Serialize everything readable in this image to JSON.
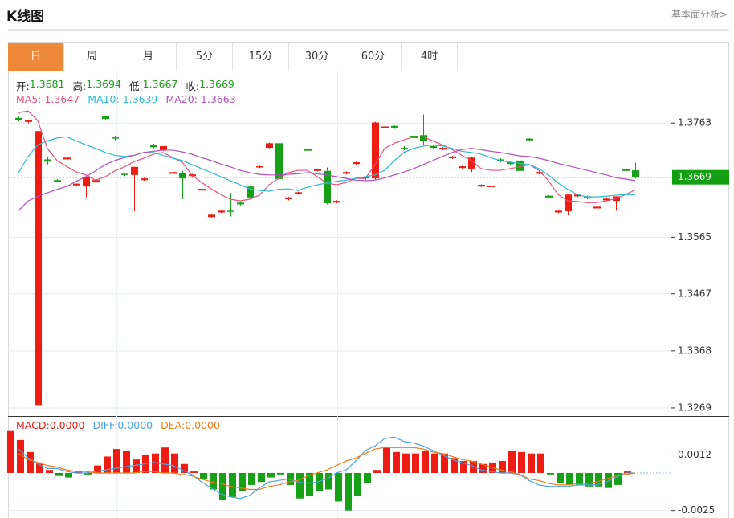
{
  "header": {
    "title": "K线图",
    "link": "基本面分析>"
  },
  "tabs": [
    "日",
    "周",
    "月",
    "5分",
    "15分",
    "30分",
    "60分",
    "4时"
  ],
  "active_tab": 0,
  "chart_data": [
    {
      "type": "candlestick",
      "ohlc_labels": [
        "开:",
        "高:",
        "低:",
        "收:"
      ],
      "up_color": "#ee1c12",
      "down_color": "#16a016",
      "candles": [
        [
          1.3772,
          1.3774,
          1.3766,
          1.3768
        ],
        [
          1.3765,
          1.3768,
          1.3763,
          1.3768
        ],
        [
          1.3274,
          1.3749,
          1.3274,
          1.3749
        ],
        [
          1.37,
          1.3705,
          1.3691,
          1.3696
        ],
        [
          1.3664,
          1.3666,
          1.366,
          1.3661
        ],
        [
          1.37,
          1.3704,
          1.3699,
          1.3703
        ],
        [
          1.3655,
          1.3658,
          1.3654,
          1.3658
        ],
        [
          1.3653,
          1.367,
          1.3634,
          1.367
        ],
        [
          1.366,
          1.3664,
          1.3659,
          1.3664
        ],
        [
          1.3775,
          1.3776,
          1.3769,
          1.377
        ],
        [
          1.3738,
          1.3741,
          1.3733,
          1.3736
        ],
        [
          1.3675,
          1.3677,
          1.3671,
          1.3673
        ],
        [
          1.3673,
          1.3687,
          1.361,
          1.3687
        ],
        [
          1.3664,
          1.3668,
          1.3663,
          1.3667
        ],
        [
          1.3725,
          1.3727,
          1.3719,
          1.3721
        ],
        [
          1.3716,
          1.3723,
          1.3714,
          1.3723
        ],
        [
          1.3675,
          1.3679,
          1.3674,
          1.3678
        ],
        [
          1.3677,
          1.368,
          1.3631,
          1.3667
        ],
        [
          1.3671,
          1.3675,
          1.367,
          1.3674
        ],
        [
          1.3646,
          1.365,
          1.3645,
          1.3649
        ],
        [
          1.36,
          1.3605,
          1.3599,
          1.3604
        ],
        [
          1.3608,
          1.3612,
          1.3607,
          1.3611
        ],
        [
          1.3611,
          1.3642,
          1.3601,
          1.3609
        ],
        [
          1.3625,
          1.3626,
          1.362,
          1.3622
        ],
        [
          1.3653,
          1.3655,
          1.3632,
          1.3634
        ],
        [
          1.3686,
          1.3689,
          1.3685,
          1.3688
        ],
        [
          1.372,
          1.3729,
          1.3719,
          1.3728
        ],
        [
          1.3728,
          1.3738,
          1.3664,
          1.3666
        ],
        [
          1.3631,
          1.3635,
          1.3629,
          1.3634
        ],
        [
          1.364,
          1.3644,
          1.3639,
          1.3643
        ],
        [
          1.3718,
          1.372,
          1.3713,
          1.3715
        ],
        [
          1.368,
          1.3684,
          1.3679,
          1.3683
        ],
        [
          1.368,
          1.3686,
          1.3622,
          1.3624
        ],
        [
          1.3625,
          1.3629,
          1.3624,
          1.3628
        ],
        [
          1.3675,
          1.3679,
          1.3674,
          1.3678
        ],
        [
          1.3692,
          1.3696,
          1.3691,
          1.3695
        ],
        [
          1.3667,
          1.367,
          1.3665,
          1.3669
        ],
        [
          1.3667,
          1.3765,
          1.3665,
          1.3764
        ],
        [
          1.3754,
          1.3758,
          1.3753,
          1.3757
        ],
        [
          1.3758,
          1.3759,
          1.3753,
          1.3755
        ],
        [
          1.372,
          1.3723,
          1.3716,
          1.3718
        ],
        [
          1.3741,
          1.3743,
          1.3735,
          1.3737
        ],
        [
          1.3742,
          1.3778,
          1.3725,
          1.3732
        ],
        [
          1.3723,
          1.3724,
          1.3719,
          1.372
        ],
        [
          1.3717,
          1.3721,
          1.3716,
          1.372
        ],
        [
          1.3702,
          1.3706,
          1.3701,
          1.3705
        ],
        [
          1.3685,
          1.3689,
          1.3684,
          1.3688
        ],
        [
          1.3684,
          1.3705,
          1.3678,
          1.3703
        ],
        [
          1.3653,
          1.3657,
          1.3652,
          1.3656
        ],
        [
          1.3652,
          1.3655,
          1.3651,
          1.3654
        ],
        [
          1.37,
          1.3702,
          1.3695,
          1.3697
        ],
        [
          1.3695,
          1.3697,
          1.369,
          1.3692
        ],
        [
          1.3698,
          1.3732,
          1.3656,
          1.368
        ],
        [
          1.3736,
          1.3737,
          1.3731,
          1.3733
        ],
        [
          1.3675,
          1.3679,
          1.3674,
          1.3678
        ],
        [
          1.3637,
          1.3638,
          1.3632,
          1.3634
        ],
        [
          1.3608,
          1.3612,
          1.3607,
          1.3611
        ],
        [
          1.361,
          1.3639,
          1.3603,
          1.3639
        ],
        [
          1.3636,
          1.364,
          1.3635,
          1.3639
        ],
        [
          1.3636,
          1.3637,
          1.3631,
          1.3633
        ],
        [
          1.3615,
          1.3619,
          1.3614,
          1.3618
        ],
        [
          1.3629,
          1.3633,
          1.3628,
          1.3632
        ],
        [
          1.3628,
          1.3636,
          1.3611,
          1.3636
        ],
        [
          1.3683,
          1.3684,
          1.3679,
          1.368
        ],
        [
          1.3681,
          1.3694,
          1.3667,
          1.3669
        ]
      ],
      "series": [
        {
          "name": "MA5:",
          "color": "#e9507b",
          "values": [
            1.3781,
            1.3784,
            1.3767,
            1.3719,
            1.3698,
            1.3688,
            1.3678,
            1.3673,
            1.3664,
            1.367,
            1.368,
            1.3687,
            1.3696,
            1.3702,
            1.3709,
            1.3712,
            1.3703,
            1.3695,
            1.3673,
            1.366,
            1.3649,
            1.3639,
            1.3631,
            1.3628,
            1.3631,
            1.3638,
            1.3656,
            1.3667,
            1.3677,
            1.3681,
            1.3681,
            1.367,
            1.3659,
            1.3656,
            1.366,
            1.3667,
            1.3667,
            1.3691,
            1.3719,
            1.3728,
            1.3734,
            1.3739,
            1.3739,
            1.3732,
            1.3725,
            1.3717,
            1.3707,
            1.3698,
            1.3684,
            1.3681,
            1.3681,
            1.3684,
            1.3687,
            1.3691,
            1.3681,
            1.3663,
            1.3639,
            1.3628,
            1.3627,
            1.3625,
            1.3625,
            1.3628,
            1.3632,
            1.3639,
            1.3647
          ]
        },
        {
          "name": "MA10:",
          "color": "#2bbcd3",
          "values": [
            1.3677,
            1.3705,
            1.3725,
            1.3732,
            1.3737,
            1.3739,
            1.3732,
            1.3725,
            1.3719,
            1.3712,
            1.3707,
            1.3705,
            1.3707,
            1.3712,
            1.3712,
            1.3707,
            1.3702,
            1.3698,
            1.3691,
            1.3684,
            1.3677,
            1.367,
            1.3663,
            1.3656,
            1.3649,
            1.3646,
            1.3645,
            1.3648,
            1.3649,
            1.3646,
            1.3652,
            1.3656,
            1.3659,
            1.3662,
            1.3664,
            1.3667,
            1.367,
            1.3673,
            1.3681,
            1.3698,
            1.3712,
            1.3719,
            1.3723,
            1.3725,
            1.3723,
            1.3719,
            1.3714,
            1.3712,
            1.3709,
            1.3703,
            1.3698,
            1.3695,
            1.3693,
            1.3691,
            1.3684,
            1.3673,
            1.3659,
            1.3648,
            1.3639,
            1.3635,
            1.3635,
            1.3636,
            1.3638,
            1.3639,
            1.3639
          ]
        },
        {
          "name": "MA20:",
          "color": "#b14fbf",
          "values": [
            1.3611,
            1.3628,
            1.3636,
            1.3642,
            1.3648,
            1.3653,
            1.3662,
            1.367,
            1.368,
            1.3691,
            1.3698,
            1.3703,
            1.3707,
            1.3712,
            1.3714,
            1.3716,
            1.3716,
            1.3713,
            1.3709,
            1.3703,
            1.3698,
            1.3692,
            1.3687,
            1.3681,
            1.3677,
            1.3674,
            1.3673,
            1.3673,
            1.3674,
            1.3675,
            1.3677,
            1.3675,
            1.3673,
            1.367,
            1.3667,
            1.3664,
            1.3663,
            1.3664,
            1.3668,
            1.3673,
            1.3678,
            1.3684,
            1.3691,
            1.3698,
            1.3705,
            1.3712,
            1.3717,
            1.3719,
            1.3717,
            1.3714,
            1.3712,
            1.3709,
            1.3706,
            1.3705,
            1.3702,
            1.3698,
            1.3693,
            1.3689,
            1.3685,
            1.3681,
            1.3677,
            1.3673,
            1.3668,
            1.3666,
            1.3663
          ]
        }
      ],
      "ylim": [
        1.3255,
        1.3851
      ],
      "yticks": [
        1.3763,
        1.3565,
        1.3467,
        1.3368,
        1.3269
      ],
      "grid": true
    },
    {
      "type": "macd",
      "legend_values": [
        "0.0000",
        "0.0000",
        "0.0000"
      ],
      "series": [
        {
          "name": "MACD:",
          "type": "bar",
          "color": "#ee1c12",
          "down_color": "#16a016",
          "values": [
            0.0028,
            0.0022,
            0.0014,
            0.0007,
            0.0002,
            -0.0002,
            -0.0003,
            0.0001,
            -0.0001,
            0.0005,
            0.0011,
            0.0016,
            0.0015,
            0.0009,
            0.0012,
            0.0013,
            0.0017,
            0.0013,
            0.0006,
            0.0001,
            -0.0004,
            -0.0011,
            -0.0018,
            -0.0016,
            -0.0012,
            -0.0008,
            -0.0006,
            -0.0003,
            -0.0001,
            -0.0008,
            -0.0017,
            -0.0015,
            -0.0012,
            -0.0011,
            -0.0019,
            -0.0025,
            -0.0015,
            -0.0007,
            0.0002,
            0.0017,
            0.0014,
            0.0013,
            0.0013,
            0.0015,
            0.0013,
            0.0013,
            0.001,
            0.0008,
            0.0008,
            0.0006,
            0.0007,
            0.0008,
            0.0015,
            0.0014,
            0.0013,
            0.0013,
            -0.0001,
            -0.0007,
            -0.0008,
            -0.0008,
            -0.0009,
            -0.0009,
            -0.001,
            -0.0008,
            0.0001
          ]
        },
        {
          "name": "DIFF:",
          "type": "line",
          "color": "#4aa3e6",
          "values": [
            0.0016,
            0.001,
            0.0006,
            0.0003,
            0.0003,
            0.0001,
            0,
            0,
            0.0001,
            0.0002,
            0.0003,
            0.0004,
            0.0005,
            0.0006,
            0.0007,
            0.0006,
            0.0005,
            0.0002,
            -0.0001,
            -0.0006,
            -0.001,
            -0.0014,
            -0.0016,
            -0.0017,
            -0.0015,
            -0.001,
            -0.0006,
            -0.0005,
            -0.0004,
            -0.0006,
            -0.0007,
            -0.0006,
            -0.0004,
            0,
            0.0002,
            0.0008,
            0.0015,
            0.0018,
            0.0023,
            0.0024,
            0.0021,
            0.002,
            0.0018,
            0.0015,
            0.0012,
            0.0009,
            0.0007,
            0.0005,
            0.0002,
            0.0001,
            0,
            0,
            -0.0001,
            -0.0005,
            -0.0008,
            -0.0009,
            -0.0009,
            -0.0009,
            -0.0008,
            -0.0008,
            -0.0008,
            -0.0006,
            -0.0003,
            0,
            0
          ]
        },
        {
          "name": "DEA:",
          "type": "line",
          "color": "#f07c1a",
          "values": [
            0.0013,
            0.0009,
            0.0007,
            0.0005,
            0.0004,
            0.0002,
            0.0001,
            0.0001,
            0,
            0,
            0,
            0,
            0,
            0.0001,
            0.0001,
            0,
            0,
            -0.0001,
            -0.0002,
            -0.0004,
            -0.0006,
            -0.0007,
            -0.0009,
            -0.001,
            -0.0011,
            -0.0011,
            -0.0009,
            -0.0008,
            -0.0006,
            -0.0005,
            -0.0002,
            0,
            0.0002,
            0.0005,
            0.0008,
            0.001,
            0.0013,
            0.0016,
            0.0017,
            0.0017,
            0.0017,
            0.0017,
            0.0016,
            0.0014,
            0.0013,
            0.0011,
            0.0009,
            0.0008,
            0.0006,
            0.0004,
            0.0002,
            0.0001,
            -0.0001,
            -0.0004,
            -0.0005,
            -0.0007,
            -0.0008,
            -0.0008,
            -0.0007,
            -0.0007,
            -0.0006,
            -0.0004,
            -0.0002,
            -0.0001,
            0
          ]
        }
      ],
      "ylim": [
        -0.003,
        0.0038
      ],
      "yticks": [
        0.0012,
        -0.0025
      ],
      "grid": true
    }
  ]
}
